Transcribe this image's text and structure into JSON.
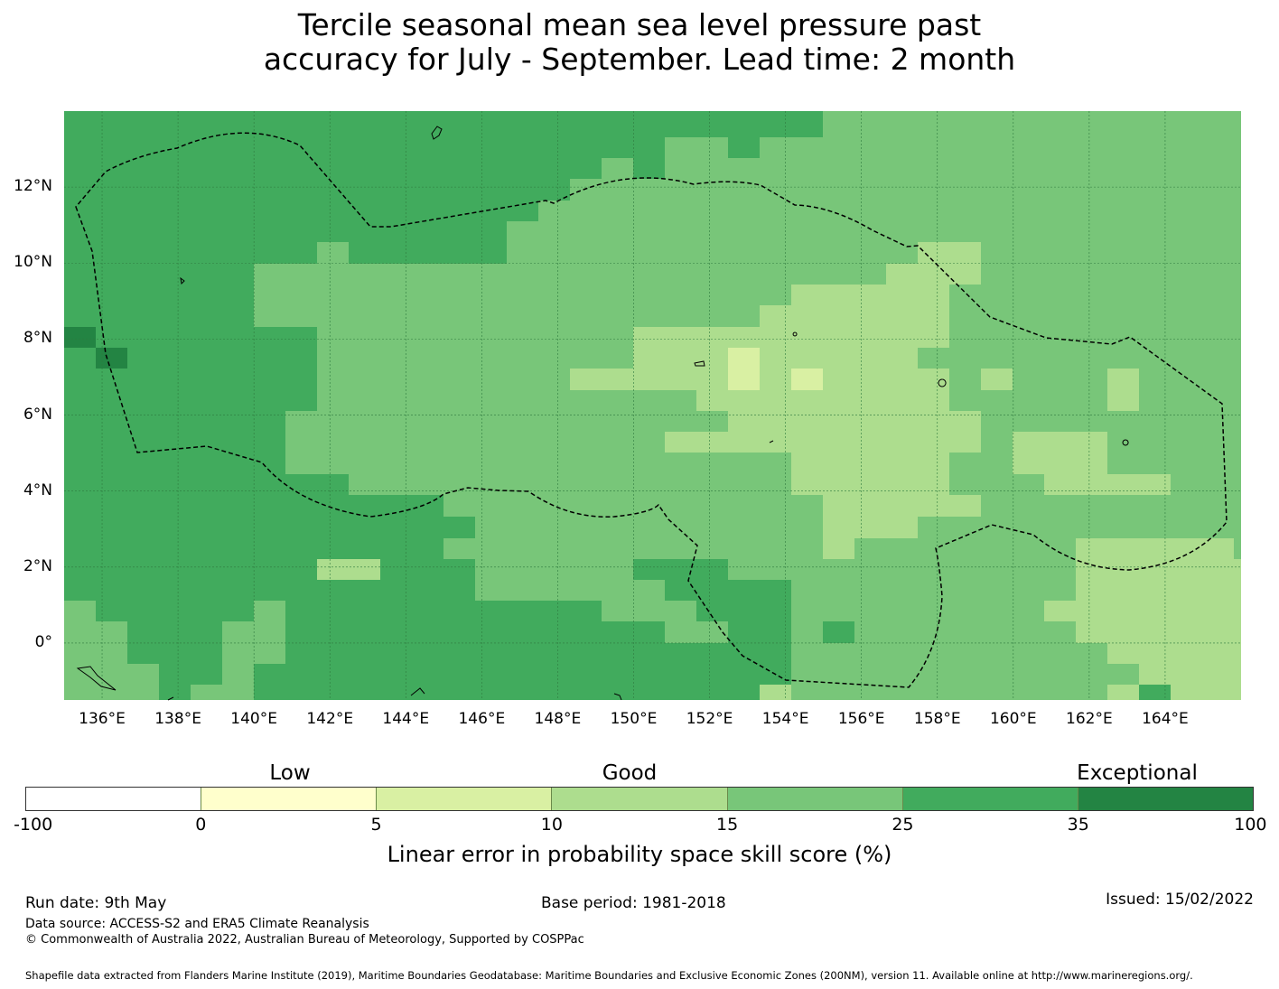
{
  "title_line1": "Tercile seasonal mean sea level pressure past",
  "title_line2": "accuracy for July - September. Lead time: 2 month",
  "map": {
    "lon_ticks": [
      "136°E",
      "138°E",
      "140°E",
      "142°E",
      "144°E",
      "146°E",
      "148°E",
      "150°E",
      "152°E",
      "154°E",
      "156°E",
      "158°E",
      "160°E",
      "162°E",
      "164°E"
    ],
    "lat_ticks": [
      "12°N",
      "10°N",
      "8°N",
      "6°N",
      "4°N",
      "2°N",
      "0°"
    ],
    "lon_range": [
      135.0,
      166.0
    ],
    "lat_range": [
      -1.5,
      14.0
    ],
    "gridlines": true
  },
  "legend": {
    "categories": [
      "Low",
      "Good",
      "Exceptional"
    ],
    "tick_labels": [
      "-100",
      "0",
      "5",
      "10",
      "15",
      "25",
      "35",
      "100"
    ],
    "bins": [
      {
        "from": -100,
        "to": 0,
        "color": "#ffffff"
      },
      {
        "from": 0,
        "to": 5,
        "color": "#ffffcc"
      },
      {
        "from": 5,
        "to": 10,
        "color": "#d9f0a3"
      },
      {
        "from": 10,
        "to": 15,
        "color": "#addd8e"
      },
      {
        "from": 15,
        "to": 25,
        "color": "#78c679"
      },
      {
        "from": 25,
        "to": 35,
        "color": "#41ab5d"
      },
      {
        "from": 35,
        "to": 100,
        "color": "#238443"
      }
    ],
    "label": "Linear error in probability space skill score (%)"
  },
  "footer": {
    "run_date": "Run date: 9th May",
    "base_period": "Base period: 1981-2018",
    "issued": "Issued: 15/02/2022",
    "data_source": "Data source: ACCESS-S2 and ERA5 Climate Reanalysis",
    "copyright": "© Commonwealth of Australia 2022, Australian Bureau of Meteorology, Supported by COSPPac",
    "shapefile": "Shapefile data extracted from Flanders Marine Institute (2019), Maritime Boundaries Geodatabase: Maritime Boundaries and Exclusive Economic Zones (200NM), version 11. Available online at http://www.marineregions.org/."
  }
}
